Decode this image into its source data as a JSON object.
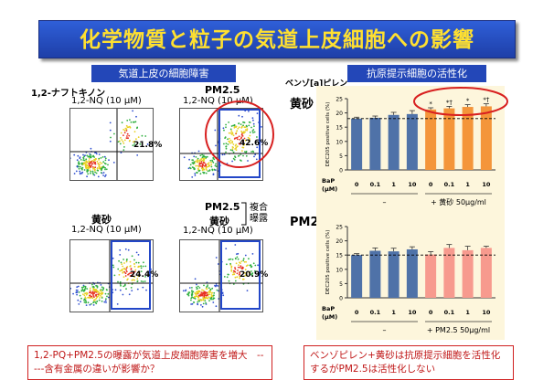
{
  "title": "化学物質と粒子の気道上皮細胞への影響",
  "left_header": "気道上皮の細胞障害",
  "right_header": "抗原提示細胞の活性化",
  "left": {
    "p1": {
      "name": "1,2-ナフトキノン",
      "dose": "1,2-NQ (10 µM)",
      "pct": "21.8%"
    },
    "p2": {
      "name": "PM2.5",
      "dose": "1,2-NQ (10 µM)",
      "pct": "42.6%"
    },
    "p3": {
      "name": "黄砂",
      "dose": "1,2-NQ (10 µM)",
      "pct": "24.4%"
    },
    "p4": {
      "name1": "PM2.5",
      "name2": "黄砂",
      "dose": "1,2-NQ (10 µM)",
      "pct": "20.9%"
    },
    "combo": "複合\n曝露"
  },
  "right": {
    "benzo_label": "ベンゾ[a]ピレン",
    "c1_label": "黄砂",
    "c2_label": "PM2.5",
    "ylabel": "DEC205 positive cells (%)",
    "bap_label": "BaP",
    "unit_label": "(µM)",
    "doses": [
      "0",
      "0.1",
      "1",
      "10"
    ],
    "dash": "–",
    "c1_plus": "+ 黄砂  50µg/ml",
    "c2_plus": "+ PM2.5  50µg/ml",
    "sig1": "*",
    "sig2": "*†"
  },
  "chart_data": [
    {
      "type": "bar",
      "title": "黄砂",
      "ylabel": "DEC205 positive cells (%)",
      "ylim": [
        0,
        25
      ],
      "yticks": [
        0,
        5,
        10,
        15,
        20,
        25
      ],
      "groups": [
        "–",
        "+ 黄砂 50µg/ml"
      ],
      "categories": [
        "0",
        "0.1",
        "1",
        "10",
        "0",
        "0.1",
        "1",
        "10"
      ],
      "values": [
        18.0,
        18.3,
        19.3,
        19.6,
        21.2,
        21.6,
        22.1,
        22.3
      ],
      "errors": [
        0.5,
        0.6,
        0.9,
        1.2,
        0.6,
        0.7,
        0.8,
        0.9
      ],
      "significance": [
        "",
        "",
        "",
        "",
        "*",
        "*†",
        "*",
        "*†"
      ],
      "colors": [
        "#4f72a8",
        "#4f72a8",
        "#4f72a8",
        "#4f72a8",
        "#f4953a",
        "#f4953a",
        "#f4953a",
        "#f4953a"
      ],
      "reference_line": 18.0
    },
    {
      "type": "bar",
      "title": "PM2.5",
      "ylabel": "DEC205 positive cells (%)",
      "ylim": [
        0,
        25
      ],
      "yticks": [
        0,
        5,
        10,
        15,
        20,
        25
      ],
      "groups": [
        "–",
        "+ PM2.5 50µg/ml"
      ],
      "categories": [
        "0",
        "0.1",
        "1",
        "10",
        "0",
        "0.1",
        "1",
        "10"
      ],
      "values": [
        15.0,
        16.5,
        16.3,
        17.0,
        15.2,
        17.5,
        16.7,
        17.5
      ],
      "errors": [
        0.5,
        1.0,
        1.1,
        0.9,
        1.0,
        1.2,
        1.4,
        0.6
      ],
      "colors": [
        "#4f72a8",
        "#4f72a8",
        "#4f72a8",
        "#4f72a8",
        "#f79a8e",
        "#f79a8e",
        "#f79a8e",
        "#f79a8e"
      ],
      "reference_line": 15.0
    }
  ],
  "note_left": "1,2-PQ+PM2.5の曝露が気道上皮細胞障害を増大　-----含有金属の違いが影響か？",
  "note_right": "ベンゾピレン+黄砂は抗原提示細胞を活性化するがPM2.5は活性化しない"
}
